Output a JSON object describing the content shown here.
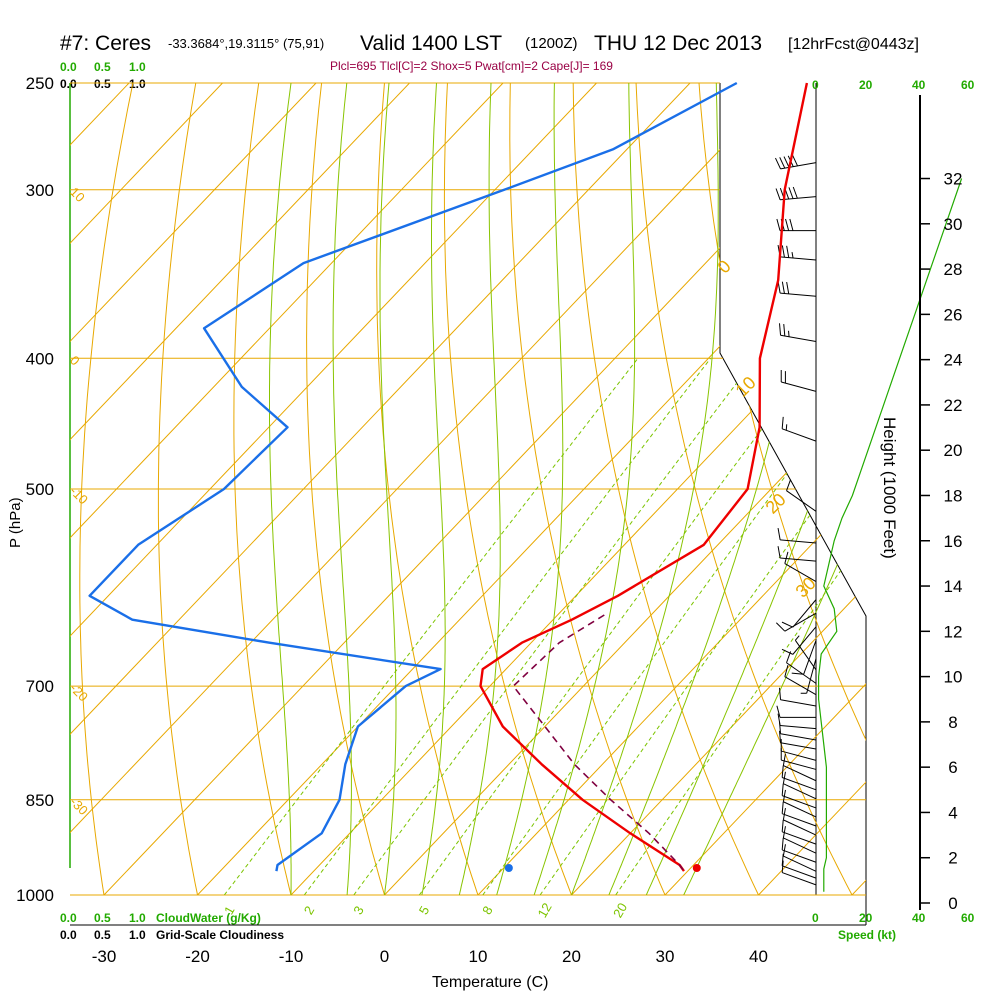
{
  "header": {
    "station": "#7: Ceres",
    "coords": "-33.3684°,19.3115° (75,91)",
    "valid": "Valid 1400 LST",
    "zulu": "(1200Z)",
    "date": "THU 12 Dec 2013",
    "fcst": "[12hrFcst@0443z]",
    "params": "Plcl=695 Tlcl[C]=2 Shox=5 Pwat[cm]=2 Cape[J]= 169"
  },
  "colors": {
    "isotherm": "#e8a800",
    "dry_adiabat": "#e8a800",
    "moist_adiabat": "#88c400",
    "mixing_ratio": "#7cc400",
    "temperature": "#ee0000",
    "dewpoint": "#1a6fe8",
    "parcel": "#800040",
    "green_text": "#22aa00",
    "params_text": "#990044",
    "isotherm_label": "#e8a800"
  },
  "chart_data": {
    "type": "line",
    "xlabel": "Temperature (C)",
    "ylabel": "P (hPa)",
    "xlim": [
      -34,
      45
    ],
    "pressure_ticks": [
      250,
      300,
      400,
      500,
      700,
      850,
      1000
    ],
    "temperature_ticks": [
      -30,
      -20,
      -10,
      0,
      10,
      20,
      30,
      40
    ],
    "isotherm_labels": [
      {
        "text": "10",
        "row": 300
      },
      {
        "text": "0",
        "row": 400
      },
      {
        "text": "-10",
        "row": 500
      },
      {
        "text": "-20",
        "row": 700
      },
      {
        "text": "-30",
        "row": 850
      },
      {
        "text": "0",
        "row": 345
      },
      {
        "text": "10",
        "row": 426
      },
      {
        "text": "20",
        "row": 520
      },
      {
        "text": "30",
        "row": 600
      }
    ],
    "mixing_ratio_labels": [
      "1",
      "2",
      "3",
      "5",
      "8",
      "12",
      "20"
    ],
    "series": [
      {
        "name": "Temperature",
        "p": [
          250,
          300,
          350,
          400,
          450,
          500,
          550,
          600,
          625,
          650,
          680,
          700,
          750,
          800,
          850,
          900,
          950,
          960
        ],
        "t": [
          -37.5,
          -29,
          -20.5,
          -14.5,
          -7.5,
          -2.5,
          -1.5,
          -5.5,
          -8,
          -11,
          -12.5,
          -11,
          -4.5,
          3.5,
          11.5,
          20,
          28.5,
          29.6
        ]
      },
      {
        "name": "Dewpoint",
        "p": [
          250,
          280,
          300,
          340,
          380,
          420,
          450,
          500,
          550,
          600,
          625,
          650,
          680,
          700,
          750,
          800,
          850,
          900,
          950,
          960
        ],
        "t": [
          -45,
          -51.5,
          -59,
          -73,
          -77,
          -67,
          -58,
          -58.5,
          -62,
          -62,
          -55,
          -38,
          -17,
          -19,
          -20,
          -17.5,
          -14.5,
          -13,
          -14.5,
          -14
        ]
      },
      {
        "name": "Parcel",
        "p": [
          620,
          650,
          700,
          750,
          800,
          850,
          900,
          950,
          960
        ],
        "t": [
          -5,
          -7,
          -7.5,
          0,
          7,
          14.5,
          22,
          28.5,
          29.6
        ]
      }
    ],
    "surface_points": [
      {
        "name": "temperature",
        "t": 33.4
      },
      {
        "name": "dewpoint",
        "t": 13.3
      }
    ],
    "cloud_scales": {
      "top_green": [
        "0.0",
        "0.5",
        "1.0"
      ],
      "top_black": [
        "0.0",
        "0.5",
        "1.0"
      ],
      "bottom_green": [
        "0.0",
        "0.5",
        "1.0"
      ],
      "bottom_black": [
        "0.0",
        "0.5",
        "1.0"
      ],
      "cloudwater_label": "CloudWater (g/Kg)",
      "cloudiness_label": "Grid-Scale Cloudiness"
    },
    "wind_speed_ticks": [
      "0",
      "20",
      "40",
      "60"
    ],
    "wind_speed_label": "Speed (kt)",
    "height_axis": {
      "label": "Height (1000 Feet)",
      "ticks": [
        0,
        2,
        4,
        6,
        8,
        10,
        12,
        14,
        16,
        18,
        20,
        22,
        24,
        26,
        28,
        30,
        32
      ]
    },
    "wind_profile": {
      "heights": [
        0.5,
        1,
        1.5,
        2,
        2.5,
        3,
        3.5,
        4,
        4.5,
        5,
        5.5,
        6,
        7,
        8,
        9,
        10,
        11,
        12,
        13,
        14,
        15,
        16,
        17,
        18,
        19,
        20,
        22,
        24,
        26,
        28,
        30,
        32
      ],
      "speed_kt": [
        3,
        3,
        3,
        4,
        4,
        4,
        4,
        4,
        4,
        4,
        4,
        4,
        3,
        2,
        1,
        1,
        2,
        8,
        7,
        3,
        5,
        7,
        10,
        14,
        17,
        20,
        26,
        32,
        38,
        44,
        50,
        56
      ]
    },
    "wind_barbs": [
      {
        "h": 0.8,
        "dir": 290,
        "spd": 10
      },
      {
        "h": 1.1,
        "dir": 290,
        "spd": 10
      },
      {
        "h": 1.4,
        "dir": 295,
        "spd": 10
      },
      {
        "h": 1.8,
        "dir": 290,
        "spd": 10
      },
      {
        "h": 2.2,
        "dir": 295,
        "spd": 10
      },
      {
        "h": 2.6,
        "dir": 290,
        "spd": 10
      },
      {
        "h": 3.0,
        "dir": 295,
        "spd": 10
      },
      {
        "h": 3.4,
        "dir": 290,
        "spd": 10
      },
      {
        "h": 3.8,
        "dir": 295,
        "spd": 10
      },
      {
        "h": 4.2,
        "dir": 290,
        "spd": 10
      },
      {
        "h": 4.6,
        "dir": 295,
        "spd": 10
      },
      {
        "h": 5.0,
        "dir": 290,
        "spd": 10
      },
      {
        "h": 5.4,
        "dir": 295,
        "spd": 10
      },
      {
        "h": 5.9,
        "dir": 285,
        "spd": 10
      },
      {
        "h": 6.3,
        "dir": 285,
        "spd": 10
      },
      {
        "h": 6.8,
        "dir": 280,
        "spd": 10
      },
      {
        "h": 7.2,
        "dir": 280,
        "spd": 10
      },
      {
        "h": 7.7,
        "dir": 275,
        "spd": 10
      },
      {
        "h": 8.2,
        "dir": 270,
        "spd": 10
      },
      {
        "h": 8.7,
        "dir": 280,
        "spd": 10
      },
      {
        "h": 9.2,
        "dir": 300,
        "spd": 10
      },
      {
        "h": 9.7,
        "dir": 305,
        "spd": 10
      },
      {
        "h": 10.3,
        "dir": 325,
        "spd": 5
      },
      {
        "h": 10.8,
        "dir": 195,
        "spd": 5
      },
      {
        "h": 11.6,
        "dir": 200,
        "spd": 10
      },
      {
        "h": 12.2,
        "dir": 220,
        "spd": 10
      },
      {
        "h": 12.8,
        "dir": 240,
        "spd": 10
      },
      {
        "h": 13.4,
        "dir": 220,
        "spd": 10
      },
      {
        "h": 14.2,
        "dir": 300,
        "spd": 10
      },
      {
        "h": 15.1,
        "dir": 275,
        "spd": 10
      },
      {
        "h": 15.9,
        "dir": 275,
        "spd": 10
      },
      {
        "h": 17.3,
        "dir": 305,
        "spd": 10
      },
      {
        "h": 20.4,
        "dir": 290,
        "spd": 15
      },
      {
        "h": 22.6,
        "dir": 285,
        "spd": 20
      },
      {
        "h": 24.8,
        "dir": 280,
        "spd": 25
      },
      {
        "h": 26.8,
        "dir": 275,
        "spd": 30
      },
      {
        "h": 28.4,
        "dir": 275,
        "spd": 35
      },
      {
        "h": 29.7,
        "dir": 270,
        "spd": 40
      },
      {
        "h": 31.2,
        "dir": 265,
        "spd": 50
      },
      {
        "h": 32.7,
        "dir": 260,
        "spd": 50
      }
    ]
  }
}
